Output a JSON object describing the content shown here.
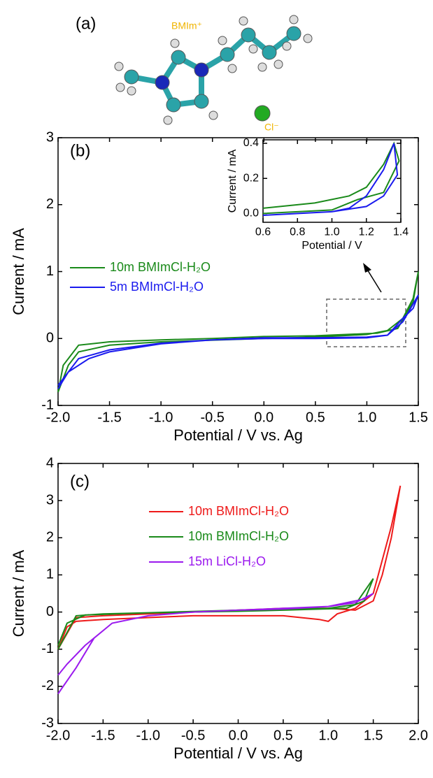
{
  "figure_a": {
    "panel_label": "(a)",
    "cation": "BMIm⁺",
    "anion": "Cl⁻"
  },
  "chart_data": [
    {
      "type": "line",
      "panel_label": "(b)",
      "x_label": "Potential / V vs. Ag",
      "y_label": "Current / mA",
      "xlim": [
        -2.0,
        1.5
      ],
      "ylim": [
        -1,
        3
      ],
      "xticks": [
        {
          "value": -2.0,
          "label": "-2.0"
        },
        -1.5,
        {
          "value": -1.0,
          "label": "-1.0"
        },
        -0.5,
        {
          "value": 0.0,
          "label": "0.0"
        },
        0.5,
        {
          "value": 1.0,
          "label": "1.0"
        },
        1.5
      ],
      "yticks": [
        -1,
        0,
        1,
        2,
        3
      ],
      "series": [
        {
          "name": "10m BMImCl-H₂O",
          "color": "#1a8a1a",
          "x": [
            -2.0,
            -1.9,
            -1.8,
            -1.5,
            -1.0,
            0.0,
            0.5,
            1.0,
            1.2,
            1.35,
            1.45,
            1.5,
            1.45,
            1.3,
            1.1,
            0.5,
            0.0,
            -0.5,
            -1.0,
            -1.5,
            -1.8,
            -1.95,
            -2.0
          ],
          "values": [
            -0.8,
            -0.4,
            -0.2,
            -0.1,
            -0.05,
            0.0,
            0.02,
            0.06,
            0.12,
            0.3,
            0.6,
            1.0,
            0.55,
            0.15,
            0.08,
            0.04,
            0.03,
            0.0,
            -0.02,
            -0.05,
            -0.1,
            -0.4,
            -0.8
          ]
        },
        {
          "name": "5m BMImCl-H₂O",
          "color": "#1a1aee",
          "x": [
            -2.0,
            -1.9,
            -1.7,
            -1.5,
            -1.0,
            -0.5,
            0.0,
            0.5,
            1.0,
            1.2,
            1.35,
            1.5,
            1.45,
            1.35,
            1.2,
            1.0,
            0.5,
            0.0,
            -0.5,
            -1.0,
            -1.5,
            -1.8,
            -2.0
          ],
          "values": [
            -0.75,
            -0.5,
            -0.3,
            -0.2,
            -0.08,
            -0.02,
            0.0,
            0.0,
            0.01,
            0.05,
            0.25,
            0.65,
            0.45,
            0.3,
            0.05,
            0.02,
            0.01,
            0.01,
            -0.02,
            -0.07,
            -0.17,
            -0.3,
            -0.7
          ]
        }
      ]
    },
    {
      "type": "line",
      "x_label": "Potential / V",
      "y_label": "Current / mA",
      "xlim": [
        0.6,
        1.4
      ],
      "ylim": [
        -0.05,
        0.42
      ],
      "xticks": [
        0.6,
        0.8,
        {
          "value": 1.0,
          "label": "1.0"
        },
        1.2,
        1.4
      ],
      "yticks": [
        {
          "value": 0.0,
          "label": "0.0"
        },
        0.2,
        0.4
      ],
      "series": [
        {
          "color": "#1a8a1a",
          "x": [
            0.6,
            0.9,
            1.1,
            1.2,
            1.3,
            1.36,
            1.39,
            1.3,
            1.15,
            1.0,
            0.6
          ],
          "values": [
            0.03,
            0.06,
            0.1,
            0.15,
            0.28,
            0.4,
            0.3,
            0.12,
            0.08,
            0.02,
            0.0
          ]
        },
        {
          "color": "#1a1aee",
          "x": [
            0.6,
            0.8,
            1.0,
            1.1,
            1.2,
            1.3,
            1.36,
            1.38,
            1.3,
            1.2,
            1.0,
            0.6
          ],
          "values": [
            -0.01,
            0.0,
            0.01,
            0.03,
            0.1,
            0.25,
            0.4,
            0.22,
            0.1,
            0.04,
            0.01,
            -0.01
          ]
        }
      ]
    },
    {
      "type": "line",
      "panel_label": "(c)",
      "x_label": "Potential / V vs. Ag",
      "y_label": "Current / mA",
      "xlim": [
        -2.0,
        2.0
      ],
      "ylim": [
        -3,
        4
      ],
      "xticks": [
        {
          "value": -2.0,
          "label": "-2.0"
        },
        -1.5,
        {
          "value": -1.0,
          "label": "-1.0"
        },
        -0.5,
        {
          "value": 0.0,
          "label": "0.0"
        },
        0.5,
        {
          "value": 1.0,
          "label": "1.0"
        },
        1.5,
        {
          "value": 2.0,
          "label": "2.0"
        }
      ],
      "yticks": [
        -3,
        -2,
        -1,
        0,
        1,
        2,
        3,
        4
      ],
      "series": [
        {
          "name": "10m BMImCl-H₂O",
          "color": "#ee1a1a",
          "x": [
            -2.0,
            -1.9,
            -1.8,
            -1.5,
            -1.0,
            -0.5,
            0.0,
            0.5,
            0.9,
            1.0,
            1.1,
            1.3,
            1.5,
            1.7,
            1.8,
            1.7,
            1.6,
            1.5,
            1.3,
            1.0,
            0.5,
            0.0,
            -0.5,
            -1.0,
            -1.5,
            -1.8,
            -2.0
          ],
          "values": [
            -1.0,
            -0.4,
            -0.25,
            -0.2,
            -0.15,
            -0.1,
            -0.1,
            -0.1,
            -0.2,
            -0.25,
            -0.05,
            0.1,
            0.5,
            2.3,
            3.4,
            2.0,
            1.0,
            0.3,
            0.05,
            0.1,
            0.1,
            0.05,
            0.0,
            -0.05,
            -0.1,
            -0.15,
            -1.0
          ]
        },
        {
          "name": "10m BMImCl-H₂O",
          "color": "#1a8a1a",
          "x": [
            -2.0,
            -1.8,
            -1.5,
            -1.0,
            0.0,
            0.5,
            1.0,
            1.3,
            1.5,
            1.4,
            1.2,
            0.5,
            0.0,
            -1.0,
            -1.7,
            -1.9,
            -2.0
          ],
          "values": [
            -1.0,
            -0.1,
            -0.05,
            -0.02,
            0.05,
            0.08,
            0.1,
            0.2,
            0.9,
            0.3,
            0.1,
            0.05,
            0.02,
            -0.02,
            -0.08,
            -0.3,
            -0.9
          ]
        },
        {
          "name": "15m LiCl-H₂O",
          "color": "#9b1aee",
          "x": [
            -2.0,
            -1.8,
            -1.6,
            -1.4,
            -1.0,
            -0.5,
            0.0,
            0.5,
            1.0,
            1.3,
            1.5,
            1.4,
            1.0,
            0.5,
            0.0,
            -0.5,
            -1.0,
            -1.4,
            -1.7,
            -1.9,
            -2.0
          ],
          "values": [
            -2.2,
            -1.5,
            -0.7,
            -0.3,
            -0.1,
            0.0,
            0.05,
            0.1,
            0.15,
            0.25,
            0.5,
            0.35,
            0.15,
            0.08,
            0.05,
            0.0,
            -0.1,
            -0.3,
            -0.9,
            -1.4,
            -1.7
          ]
        }
      ]
    }
  ]
}
